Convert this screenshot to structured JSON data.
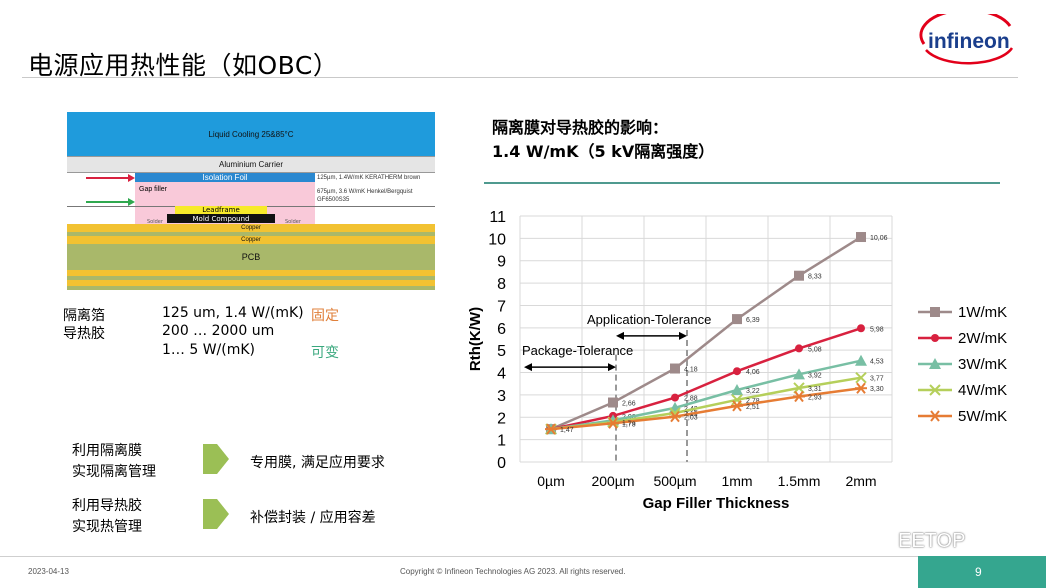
{
  "slide": {
    "title": "电源应用热性能（如OBC）",
    "logo_text": "infineon",
    "footer_date": "2023-04-13",
    "footer_copyright": "Copyright © Infineon Technologies AG 2023. All rights reserved.",
    "page_number": "9",
    "watermark": "EETOP"
  },
  "stack_diagram": {
    "liquid_cooling": "Liquid Cooling 25&85°C",
    "aluminium_carrier": "Aluminium Carrier",
    "isolation_foil": "Isolation Foil",
    "gap_filler": "Gap filler",
    "leadframe": "Leadframe",
    "mold_compound": "Mold Compound",
    "solder_left": "Solder",
    "solder_right": "Solder",
    "copper_1": "Copper",
    "copper_2": "Copper",
    "pcb": "PCB",
    "copper_3": "Copper",
    "note_foil": "125µm, 1.4W/mK KERATHERM brown",
    "note_filler_1": "675µm, 3.6 W/mK Henkel/Bergquist",
    "note_filler_2": "GF6500S35"
  },
  "specs": {
    "foil_label": "隔离箔",
    "foil_value": "125 um, 1.4 W/(mK)",
    "foil_status": "固定",
    "gel_label": "导热胶",
    "gel_value_1": "200 … 2000 um",
    "gel_value_2": "1… 5 W/(mK)",
    "gel_status": "可变"
  },
  "management": [
    {
      "label_1": "利用隔离膜",
      "label_2": "实现隔离管理",
      "desc": "专用膜, 满足应用要求"
    },
    {
      "label_1": "利用导热胶",
      "label_2": "实现热管理",
      "desc": "补偿封装 / 应用容差"
    }
  ],
  "chart_title_1": "隔离膜对导热胶的影响：",
  "chart_title_2": "1.4 W/mK（5 kV隔离强度）",
  "chart_data": {
    "type": "line",
    "xlabel": "Gap Filler Thickness",
    "ylabel": "Rth(K/W)",
    "categories": [
      "0µm",
      "200µm",
      "500µm",
      "1mm",
      "1.5mm",
      "2mm"
    ],
    "ylim": [
      0,
      11
    ],
    "yticks": [
      "0",
      "1",
      "2",
      "3",
      "4",
      "5",
      "6",
      "7",
      "8",
      "9",
      "10",
      "11"
    ],
    "grid": true,
    "legend": "right",
    "series": [
      {
        "name": "1W/mK",
        "color": "#9e8a8a",
        "marker": "square",
        "values": [
          1.47,
          2.66,
          4.18,
          6.39,
          8.33,
          10.06
        ],
        "labels": [
          "",
          "2,66",
          "4,18",
          "6,39",
          "8,33",
          "10,06"
        ]
      },
      {
        "name": "2W/mK",
        "color": "#d8213f",
        "marker": "circle",
        "values": [
          1.47,
          2.06,
          2.88,
          4.06,
          5.08,
          5.98
        ],
        "labels": [
          "",
          "2,06",
          "2,88",
          "4,06",
          "5,08",
          "5,98"
        ]
      },
      {
        "name": "3W/mK",
        "color": "#78bfa4",
        "marker": "triangle",
        "values": [
          1.47,
          1.86,
          2.42,
          3.22,
          3.92,
          4.53
        ],
        "labels": [
          "",
          "",
          "2,42",
          "3,22",
          "3,92",
          "4,53"
        ]
      },
      {
        "name": "4W/mK",
        "color": "#b5cf5b",
        "marker": "x",
        "values": [
          1.47,
          1.78,
          2.19,
          2.78,
          3.31,
          3.77
        ],
        "labels": [
          "",
          "1,78",
          "2,19",
          "2,78",
          "3,31",
          "3,77"
        ]
      },
      {
        "name": "5W/mK",
        "color": "#e67c34",
        "marker": "star",
        "values": [
          1.47,
          1.73,
          2.03,
          2.51,
          2.93,
          3.3
        ],
        "labels": [
          "1,47",
          "1,73",
          "2,03",
          "2,51",
          "2,93",
          "3,30"
        ]
      }
    ],
    "annotations": {
      "application_tolerance": "Application-Tolerance",
      "package_tolerance": "Package-Tolerance"
    }
  }
}
